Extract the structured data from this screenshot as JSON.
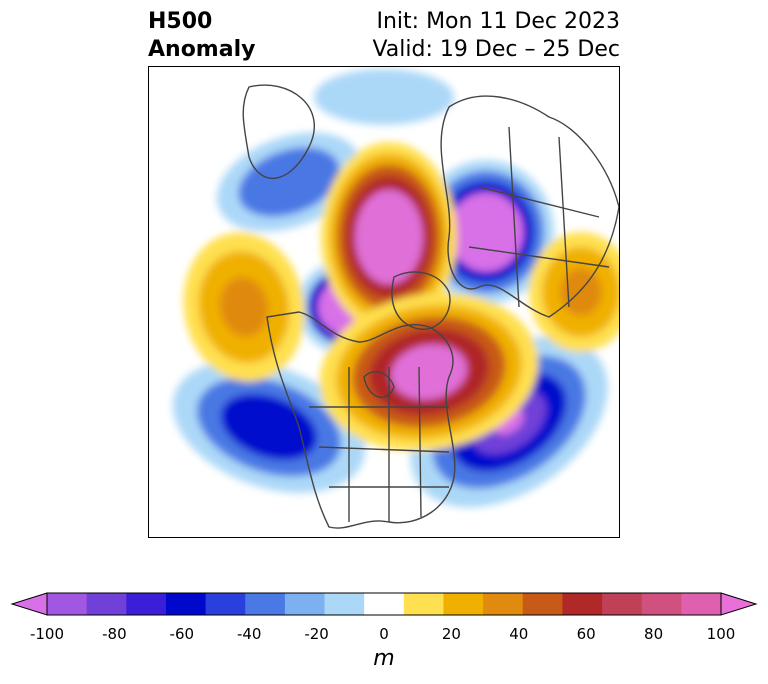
{
  "title": {
    "left_line1": "H500",
    "left_line2": "Anomaly",
    "right_line1": "Init: Mon 11 Dec 2023",
    "right_line2": "Valid: 19 Dec – 25 Dec"
  },
  "colorbar": {
    "unit": "m",
    "ticks": [
      "-100",
      "-80",
      "-60",
      "-40",
      "-20",
      "0",
      "20",
      "40",
      "60",
      "80",
      "100"
    ],
    "colors": [
      "#d870e8",
      "#a257e0",
      "#7040d8",
      "#3a1ed8",
      "#0008cc",
      "#2a40dc",
      "#4a78e4",
      "#7cb0f0",
      "#acd8f8",
      "#ffffff",
      "#ffe050",
      "#f0b000",
      "#e08a10",
      "#c85a18",
      "#b02828",
      "#c04058",
      "#d05080",
      "#e060b0",
      "#e870d8"
    ]
  },
  "map": {
    "colors": {
      "coast": "#444444",
      "neg_light": "#acd8f8",
      "neg_mid": "#4a78e4",
      "neg_dark": "#0008cc",
      "neg_core": "#d870e8",
      "pos_light": "#ffe050",
      "pos_mid": "#f0b000",
      "pos_dark": "#c85a18",
      "pos_red": "#b02828",
      "pos_core": "#e070d8"
    }
  }
}
